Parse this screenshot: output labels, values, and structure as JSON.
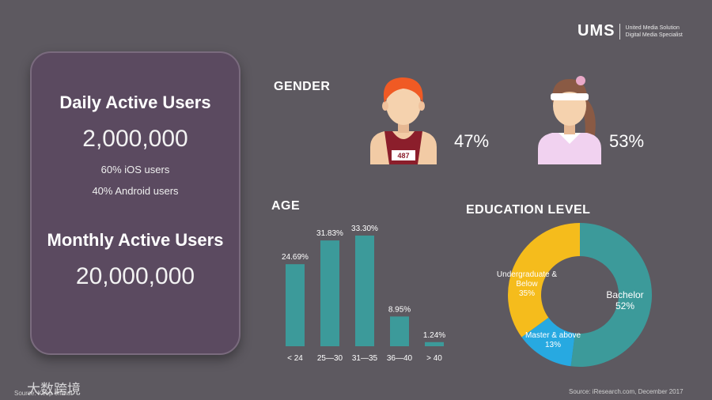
{
  "logo": {
    "mark": "UMS",
    "line1": "United Media Solution",
    "line2": "Digital Media Specialist"
  },
  "card": {
    "daily_title": "Daily Active Users",
    "daily_value": "2,000,000",
    "ios": "60% iOS users",
    "android": "40% Android users",
    "monthly_title": "Monthly Active Users",
    "monthly_value": "20,000,000"
  },
  "gender": {
    "title": "GENDER",
    "male_pct": "47%",
    "female_pct": "53%",
    "bib_number": "487"
  },
  "age": {
    "title": "AGE"
  },
  "education": {
    "title": "EDUCATION LEVEL"
  },
  "chart_data": [
    {
      "type": "bar",
      "title": "AGE",
      "categories": [
        "< 24",
        "25—30",
        "31—35",
        "36—40",
        "> 40"
      ],
      "values": [
        24.69,
        31.83,
        33.3,
        8.95,
        1.24
      ],
      "value_labels": [
        "24.69%",
        "31.83%",
        "33.30%",
        "8.95%",
        "1.24%"
      ],
      "color": "#3c9a9a"
    },
    {
      "type": "pie",
      "title": "EDUCATION LEVEL",
      "slices": [
        {
          "name": "Bachelor",
          "value": 52,
          "label": "52%",
          "color": "#3c9a9a"
        },
        {
          "name": "Master & above",
          "value": 13,
          "label": "13%",
          "color": "#27a9e1"
        },
        {
          "name": "Undergraduate & Below",
          "value": 35,
          "label": "35%",
          "color": "#f5bc1c"
        }
      ]
    }
  ],
  "footer": {
    "source_right": "Source: iResearch.com, December 2017",
    "source_left": "Source: Keep official",
    "watermark": "大数跨境"
  }
}
